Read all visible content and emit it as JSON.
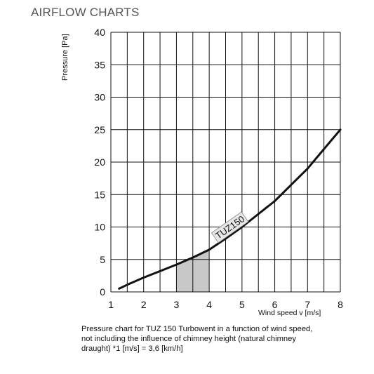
{
  "header": {
    "title": "AIRFLOW CHARTS"
  },
  "chart_data": {
    "type": "line",
    "title": "",
    "xlabel": "Wind speed v [m/s]",
    "ylabel": "Pressure [Pa]",
    "xlim": [
      1,
      8
    ],
    "ylim": [
      0,
      40
    ],
    "x_ticks": [
      1,
      2,
      3,
      4,
      5,
      6,
      7,
      8
    ],
    "y_ticks": [
      0,
      5,
      10,
      15,
      20,
      25,
      30,
      35,
      40
    ],
    "grid": true,
    "series": [
      {
        "name": "TUZ150",
        "x": [
          1.25,
          1.5,
          2,
          2.5,
          3,
          3.5,
          4,
          4.5,
          5,
          5.5,
          6,
          6.5,
          7,
          7.5,
          8
        ],
        "y": [
          0.5,
          1.1,
          2.2,
          3.2,
          4.2,
          5.3,
          6.5,
          8.2,
          10.0,
          12.0,
          14.0,
          16.5,
          19.0,
          22.0,
          25.0
        ]
      }
    ],
    "shaded_region": {
      "x": [
        3,
        4
      ]
    },
    "colors": {
      "line": "#111111",
      "grid": "#111111",
      "shade": "#c8c8c8"
    }
  },
  "caption": {
    "line1": "Pressure chart for TUZ 150 Turbowent in a function of wind speed,",
    "line2": "not including the influence of chimney height (natural chimney",
    "line3": "draught)     *1 [m/s] = 3,6 [km/h]"
  }
}
